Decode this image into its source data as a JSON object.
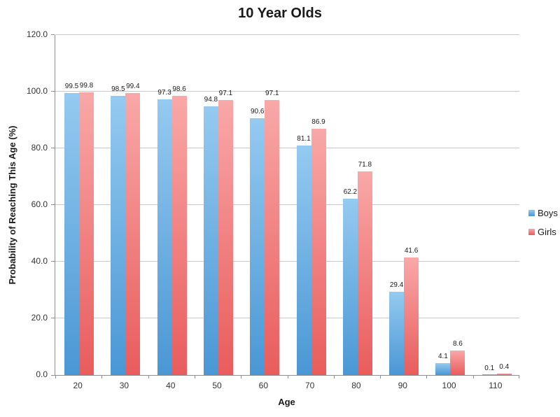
{
  "chart_data": {
    "type": "bar",
    "title": "10 Year Olds",
    "xlabel": "Age",
    "ylabel": "Probability of Reaching This Age (%)",
    "categories": [
      "20",
      "30",
      "40",
      "50",
      "60",
      "70",
      "80",
      "90",
      "100",
      "110"
    ],
    "series": [
      {
        "name": "Boys",
        "values": [
          99.5,
          98.5,
          97.3,
          94.8,
          90.6,
          81.1,
          62.2,
          29.4,
          4.1,
          0.1
        ],
        "color_top": "#95caf0",
        "color_bottom": "#4a97d5"
      },
      {
        "name": "Girls",
        "values": [
          99.8,
          99.4,
          98.6,
          97.1,
          97.1,
          86.9,
          71.8,
          41.6,
          8.6,
          0.4
        ],
        "color_top": "#f9a8a8",
        "color_bottom": "#e95c5c"
      }
    ],
    "ylim": [
      0,
      120
    ],
    "ytick_step": 20,
    "ytick_labels": [
      "0.0",
      "20.0",
      "40.0",
      "60.0",
      "80.0",
      "100.0",
      "120.0"
    ],
    "grid": true,
    "legend_position": "right",
    "value_labels_shown": true
  },
  "colors": {
    "gridline": "#c9c9c9",
    "axis": "#8f8f8f",
    "text": "#333333",
    "value_label": "#1a1a1a"
  }
}
